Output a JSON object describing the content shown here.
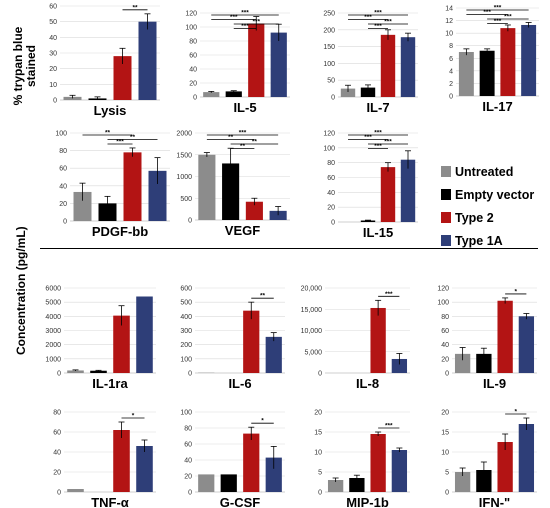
{
  "y_label_top": "% trypan blue stained",
  "y_label_conc": "Concentration (pg/mL)",
  "legend": [
    {
      "label": "Untreated",
      "color": "#8c8c8c"
    },
    {
      "label": "Empty vector",
      "color": "#000000"
    },
    {
      "label": "Type 2",
      "color": "#b31414"
    },
    {
      "label": "Type 1A",
      "color": "#2e3e78"
    }
  ],
  "colors": [
    "#8c8c8c",
    "#000000",
    "#b31414",
    "#2e3e78"
  ],
  "chart_data": [
    {
      "type": "bar",
      "title": "Lysis",
      "categories": [
        "Untreated",
        "Empty vector",
        "Type 2",
        "Type 1A"
      ],
      "values": [
        2,
        1,
        28,
        50
      ],
      "errors": [
        1,
        1,
        5,
        5
      ],
      "ylim": [
        0,
        60
      ],
      "ticks": [
        "0",
        "10",
        "20",
        "30",
        "40",
        "50",
        "60"
      ],
      "sig": [
        {
          "from": 2,
          "to": 3,
          "label": "**"
        }
      ]
    },
    {
      "type": "bar",
      "title": "IL-5",
      "categories": [
        "Untreated",
        "Empty vector",
        "Type 2",
        "Type 1A"
      ],
      "values": [
        7,
        8,
        105,
        92
      ],
      "errors": [
        1,
        1,
        10,
        12
      ],
      "ylim": [
        0,
        120
      ],
      "ticks": [
        "0",
        "20",
        "40",
        "60",
        "80",
        "100",
        "120"
      ],
      "sig": [
        {
          "from": 0,
          "to": 3,
          "label": "***"
        },
        {
          "from": 0,
          "to": 2,
          "label": "***"
        },
        {
          "from": 1,
          "to": 3,
          "label": "***"
        },
        {
          "from": 1,
          "to": 2,
          "label": "***"
        }
      ]
    },
    {
      "type": "bar",
      "title": "IL-7",
      "categories": [
        "Untreated",
        "Empty vector",
        "Type 2",
        "Type 1A"
      ],
      "values": [
        25,
        28,
        185,
        178
      ],
      "errors": [
        10,
        8,
        15,
        12
      ],
      "ylim": [
        0,
        250
      ],
      "ticks": [
        "0",
        "50",
        "100",
        "150",
        "200",
        "250"
      ],
      "sig": [
        {
          "from": 0,
          "to": 3,
          "label": "***"
        },
        {
          "from": 0,
          "to": 2,
          "label": "***"
        },
        {
          "from": 1,
          "to": 3,
          "label": "***"
        },
        {
          "from": 1,
          "to": 2,
          "label": "***"
        }
      ]
    },
    {
      "type": "bar",
      "title": "IL-17",
      "categories": [
        "Untreated",
        "Empty vector",
        "Type 2",
        "Type 1A"
      ],
      "values": [
        7,
        7.2,
        10.8,
        11.3
      ],
      "errors": [
        0.5,
        0.3,
        0.5,
        0.4
      ],
      "ylim": [
        0,
        14
      ],
      "ticks": [
        "0",
        "2",
        "4",
        "6",
        "8",
        "10",
        "12",
        "14"
      ],
      "sig": [
        {
          "from": 0,
          "to": 3,
          "label": "***"
        },
        {
          "from": 0,
          "to": 2,
          "label": "***"
        },
        {
          "from": 1,
          "to": 3,
          "label": "***"
        },
        {
          "from": 1,
          "to": 2,
          "label": "***"
        }
      ]
    },
    {
      "type": "bar",
      "title": "PDGF-bb",
      "categories": [
        "Untreated",
        "Empty vector",
        "Type 2",
        "Type 1A"
      ],
      "values": [
        33,
        20,
        78,
        57
      ],
      "errors": [
        10,
        8,
        5,
        15
      ],
      "ylim": [
        0,
        100
      ],
      "ticks": [
        "0",
        "20",
        "40",
        "60",
        "80",
        "100"
      ],
      "sig": [
        {
          "from": 0,
          "to": 2,
          "label": "**"
        },
        {
          "from": 1,
          "to": 3,
          "label": "**"
        },
        {
          "from": 1,
          "to": 2,
          "label": "***"
        }
      ]
    },
    {
      "type": "bar",
      "title": "VEGF",
      "categories": [
        "Untreated",
        "Empty vector",
        "Type 2",
        "Type 1A"
      ],
      "values": [
        1500,
        1300,
        420,
        210
      ],
      "errors": [
        50,
        350,
        80,
        100
      ],
      "ylim": [
        0,
        2000
      ],
      "ticks": [
        "0",
        "500",
        "1000",
        "1500",
        "2000"
      ],
      "sig": [
        {
          "from": 0,
          "to": 3,
          "label": "***"
        },
        {
          "from": 0,
          "to": 2,
          "label": "**"
        },
        {
          "from": 1,
          "to": 3,
          "label": "**"
        },
        {
          "from": 1,
          "to": 2,
          "label": "**"
        }
      ]
    },
    {
      "type": "bar",
      "title": "IL-15",
      "categories": [
        "Untreated",
        "Empty vector",
        "Type 2",
        "Type 1A"
      ],
      "values": [
        0,
        2,
        74,
        84
      ],
      "errors": [
        0,
        0.5,
        6,
        12
      ],
      "ylim": [
        0,
        120
      ],
      "ticks": [
        "0",
        "20",
        "40",
        "60",
        "80",
        "100",
        "120"
      ],
      "sig": [
        {
          "from": 0,
          "to": 3,
          "label": "***"
        },
        {
          "from": 0,
          "to": 2,
          "label": "***"
        },
        {
          "from": 1,
          "to": 3,
          "label": "***"
        },
        {
          "from": 1,
          "to": 2,
          "label": "***"
        }
      ]
    },
    {
      "type": "bar",
      "title": "IL-1ra",
      "categories": [
        "Untreated",
        "Empty vector",
        "Type 2",
        "Type 1A"
      ],
      "values": [
        180,
        160,
        4050,
        5400
      ],
      "errors": [
        40,
        30,
        700,
        0
      ],
      "ylim": [
        0,
        6000
      ],
      "ticks": [
        "0",
        "1000",
        "2000",
        "3000",
        "4000",
        "5000",
        "6000"
      ],
      "sig": []
    },
    {
      "type": "bar",
      "title": "IL-6",
      "categories": [
        "Untreated",
        "Empty vector",
        "Type 2",
        "Type 1A"
      ],
      "values": [
        2,
        0,
        440,
        255
      ],
      "errors": [
        0,
        0,
        60,
        30
      ],
      "ylim": [
        0,
        600
      ],
      "ticks": [
        "0",
        "100",
        "200",
        "300",
        "400",
        "500",
        "600"
      ],
      "sig": [
        {
          "from": 2,
          "to": 3,
          "label": "**"
        }
      ]
    },
    {
      "type": "bar",
      "title": "IL-8",
      "categories": [
        "Untreated",
        "Empty vector",
        "Type 2",
        "Type 1A"
      ],
      "values": [
        0,
        0,
        15300,
        3300
      ],
      "errors": [
        0,
        0,
        1800,
        1300
      ],
      "ylim": [
        0,
        20000
      ],
      "ticks": [
        "0",
        "5,000",
        "10,000",
        "15,000",
        "20,000"
      ],
      "sig": [
        {
          "from": 2,
          "to": 3,
          "label": "***"
        }
      ]
    },
    {
      "type": "bar",
      "title": "IL-9",
      "categories": [
        "Untreated",
        "Empty vector",
        "Type 2",
        "Type 1A"
      ],
      "values": [
        27,
        27,
        102,
        80
      ],
      "errors": [
        9,
        8,
        4,
        4
      ],
      "ylim": [
        0,
        120
      ],
      "ticks": [
        "0",
        "20",
        "40",
        "60",
        "80",
        "100",
        "120"
      ],
      "sig": [
        {
          "from": 2,
          "to": 3,
          "label": "*"
        }
      ]
    },
    {
      "type": "bar",
      "title": "TNF-α",
      "categories": [
        "Untreated",
        "Empty vector",
        "Type 2",
        "Type 1A"
      ],
      "values": [
        3,
        0,
        62,
        46
      ],
      "errors": [
        0,
        0,
        8,
        6
      ],
      "ylim": [
        0,
        80
      ],
      "ticks": [
        "0",
        "20",
        "40",
        "60",
        "80"
      ],
      "sig": [
        {
          "from": 2,
          "to": 3,
          "label": "*"
        }
      ]
    },
    {
      "type": "bar",
      "title": "G-CSF",
      "categories": [
        "Untreated",
        "Empty vector",
        "Type 2",
        "Type 1A"
      ],
      "values": [
        22,
        22,
        73,
        43
      ],
      "errors": [
        0,
        0,
        8,
        14
      ],
      "ylim": [
        0,
        100
      ],
      "ticks": [
        "0",
        "20",
        "40",
        "60",
        "80",
        "100"
      ],
      "sig": [
        {
          "from": 2,
          "to": 3,
          "label": "*"
        }
      ]
    },
    {
      "type": "bar",
      "title": "MIP-1b",
      "categories": [
        "Untreated",
        "Empty vector",
        "Type 2",
        "Type 1A"
      ],
      "values": [
        3,
        3.5,
        14.5,
        10.5
      ],
      "errors": [
        0.5,
        0.7,
        0.5,
        0.5
      ],
      "ylim": [
        0,
        20
      ],
      "ticks": [
        "0",
        "5",
        "10",
        "15",
        "20"
      ],
      "sig": [
        {
          "from": 2,
          "to": 3,
          "label": "***"
        }
      ]
    },
    {
      "type": "bar",
      "title": "IFN-\"",
      "categories": [
        "Untreated",
        "Empty vector",
        "Type 2",
        "Type 1A"
      ],
      "values": [
        5,
        5.5,
        12.5,
        17
      ],
      "errors": [
        1,
        2,
        2,
        1.5
      ],
      "ylim": [
        0,
        20
      ],
      "ticks": [
        "0",
        "5",
        "10",
        "15",
        "20"
      ],
      "sig": [
        {
          "from": 2,
          "to": 3,
          "label": "*"
        }
      ]
    }
  ]
}
